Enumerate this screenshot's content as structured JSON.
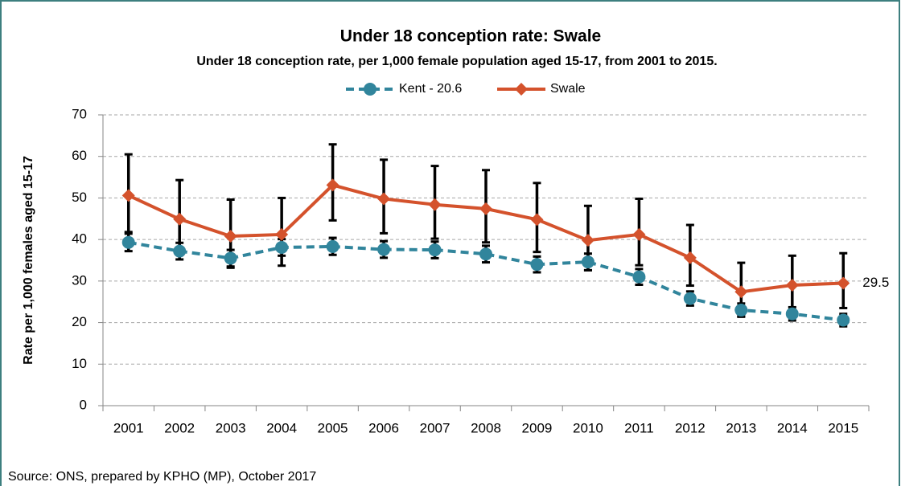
{
  "chart_data": {
    "type": "line",
    "title": "Under 18 conception rate: Swale",
    "subtitle": "Under 18 conception rate, per 1,000 female population aged 15-17, from 2001 to 2015.",
    "y_label": "Rate per 1,000 females aged 15-17",
    "source": "Source: ONS, prepared by KPHO (MP), October 2017",
    "categories": [
      "2001",
      "2002",
      "2003",
      "2004",
      "2005",
      "2006",
      "2007",
      "2008",
      "2009",
      "2010",
      "2011",
      "2012",
      "2013",
      "2014",
      "2015"
    ],
    "series": [
      {
        "name": "Kent - 20.6",
        "color": "#31859c",
        "dashed": true,
        "marker": "circle",
        "values": [
          39.3,
          37.2,
          35.5,
          38.1,
          38.3,
          37.6,
          37.5,
          36.5,
          34.0,
          34.6,
          31.0,
          25.8,
          23.0,
          22.1,
          20.6
        ],
        "lower": [
          37.2,
          35.2,
          33.5,
          36.1,
          36.3,
          35.6,
          35.5,
          34.5,
          32.1,
          32.6,
          29.1,
          24.1,
          21.4,
          20.5,
          19.1
        ],
        "upper": [
          41.4,
          39.2,
          37.5,
          40.1,
          40.4,
          39.6,
          39.5,
          38.5,
          35.9,
          36.6,
          32.9,
          27.5,
          24.6,
          23.7,
          22.1
        ]
      },
      {
        "name": "Swale",
        "color": "#d4522c",
        "dashed": false,
        "marker": "diamond",
        "values": [
          50.6,
          44.9,
          40.8,
          41.2,
          53.1,
          49.8,
          48.4,
          47.4,
          44.8,
          39.8,
          41.2,
          35.6,
          27.4,
          29.0,
          29.5
        ],
        "lower": [
          41.8,
          36.5,
          33.2,
          33.7,
          44.6,
          41.5,
          40.2,
          39.3,
          37.0,
          32.6,
          33.8,
          28.9,
          21.5,
          22.8,
          23.5
        ],
        "upper": [
          60.5,
          54.3,
          49.6,
          50.0,
          62.9,
          59.2,
          57.7,
          56.7,
          53.6,
          48.1,
          49.8,
          43.5,
          34.4,
          36.1,
          36.7
        ],
        "data_labels": "last"
      }
    ],
    "ylim": [
      0,
      70
    ],
    "yticks": [
      0,
      10,
      20,
      30,
      40,
      50,
      60,
      70
    ],
    "grid": true,
    "legend": "top"
  }
}
